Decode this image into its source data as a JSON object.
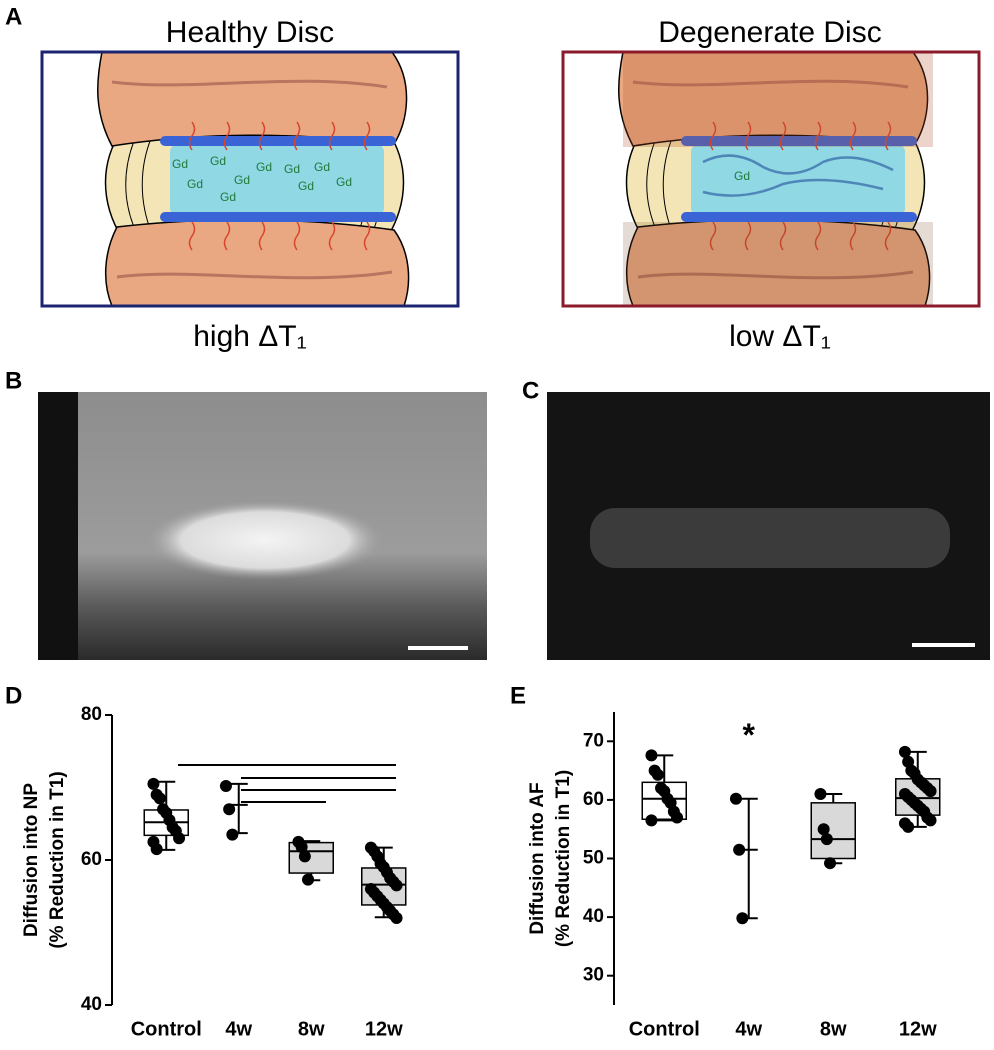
{
  "panels": {
    "labels": [
      "A",
      "B",
      "C",
      "D",
      "E"
    ],
    "healthy": {
      "title": "Healthy Disc",
      "caption": "high ΔT₁",
      "gd": [
        "Gd",
        "Gd",
        "Gd",
        "Gd",
        "Gd",
        "Gd",
        "Gd",
        "Gd",
        "Gd",
        "Gd"
      ]
    },
    "degenerate": {
      "title": "Degenerate Disc",
      "caption": "low ΔT₁",
      "gd": [
        "Gd"
      ]
    }
  },
  "chart_data": [
    {
      "type": "box",
      "ylabel": [
        "Diffusion into NP",
        "(% Reduction in T1)"
      ],
      "categories": [
        "Control",
        "4w",
        "8w",
        "12w"
      ],
      "colors": [
        "#ffffff",
        "#d9d9d9",
        "#d9d9d9",
        "#d9d9d9"
      ],
      "ylim": [
        40,
        80
      ],
      "yticks": [
        40,
        60,
        80
      ],
      "boxes": [
        {
          "min": 61.4,
          "q1": 63.4,
          "median": 65.2,
          "q3": 66.9,
          "max": 70.8,
          "points": [
            70.5,
            69,
            68.5,
            67,
            66.5,
            65.5,
            64.5,
            64,
            63,
            62.5,
            61.5
          ]
        },
        {
          "min": 63.7,
          "q1": null,
          "median": 67.6,
          "q3": null,
          "max": 70.5,
          "points": [
            70.2,
            67,
            63.5
          ]
        },
        {
          "min": 57.2,
          "q1": 58.2,
          "median": 61.2,
          "q3": 62.4,
          "max": 62.6,
          "points": [
            62.5,
            61.8,
            60.5,
            57.3
          ]
        },
        {
          "min": 52.1,
          "q1": 53.8,
          "median": 56.6,
          "q3": 58.9,
          "max": 61.7,
          "points": [
            61.7,
            61.2,
            60.5,
            59.5,
            59,
            58.3,
            57.5,
            57,
            56.5,
            56,
            55.5,
            55,
            54.5,
            54,
            53.5,
            53,
            52.5,
            52
          ]
        }
      ]
    },
    {
      "type": "box",
      "ylabel": [
        "Diffusion into AF",
        "(% Reduction in T1)"
      ],
      "categories": [
        "Control",
        "4w",
        "8w",
        "12w"
      ],
      "colors": [
        "#ffffff",
        "#d9d9d9",
        "#d9d9d9",
        "#d9d9d9"
      ],
      "ylim": [
        25,
        75
      ],
      "yticks": [
        30,
        40,
        50,
        60,
        70
      ],
      "annotations": [
        {
          "text": "*",
          "category": "4w",
          "y": 72
        }
      ],
      "boxes": [
        {
          "min": 56.5,
          "q1": 56.7,
          "median": 60.2,
          "q3": 63,
          "max": 67.6,
          "points": [
            67.6,
            65,
            64.3,
            62,
            61.5,
            60.2,
            59.5,
            58,
            57,
            56.5
          ]
        },
        {
          "min": 39.8,
          "q1": null,
          "median": 51.5,
          "q3": null,
          "max": 60.2,
          "points": [
            60.2,
            51.5,
            39.8
          ]
        },
        {
          "min": 49.2,
          "q1": 50,
          "median": 53.3,
          "q3": 59.5,
          "max": 61,
          "points": [
            61,
            55,
            53.3,
            49.2
          ]
        },
        {
          "min": 55.4,
          "q1": 57.4,
          "median": 60.3,
          "q3": 63.6,
          "max": 68.2,
          "points": [
            68.2,
            66.5,
            65,
            64.5,
            63.5,
            63,
            62.5,
            62,
            61.5,
            61,
            60.5,
            60,
            59.5,
            59,
            58.5,
            58,
            57,
            56.5,
            56,
            55.4
          ]
        }
      ]
    }
  ]
}
